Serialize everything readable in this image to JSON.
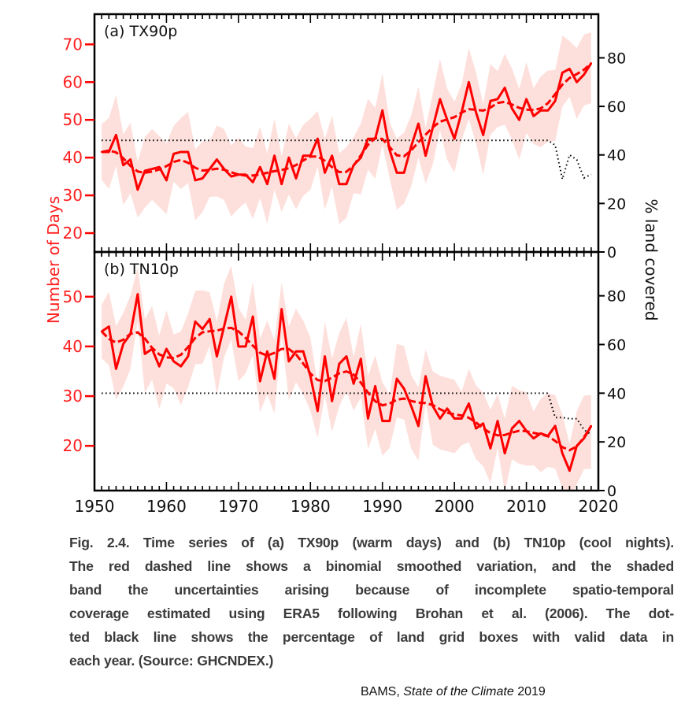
{
  "chart_data": [
    {
      "type": "line",
      "panel_label": "(a) TX90p",
      "x_start": 1951,
      "x_end": 2019,
      "xlim": [
        1950,
        2020
      ],
      "ylim": [
        15,
        78
      ],
      "yticks": [
        20,
        30,
        40,
        50,
        60,
        70
      ],
      "y2lim": [
        0,
        98
      ],
      "y2ticks": [
        0,
        20,
        40,
        60,
        80
      ],
      "values": [
        41.5,
        41.5,
        46,
        38,
        39.5,
        31.5,
        36.5,
        37,
        37.5,
        34,
        41,
        41.5,
        41.5,
        34,
        34.5,
        37,
        39.5,
        37,
        35,
        35.5,
        35.5,
        33.5,
        37.5,
        33,
        40.5,
        33,
        40,
        34.5,
        40.5,
        40.5,
        45,
        36,
        40.5,
        33,
        33,
        38,
        40,
        45,
        45,
        52.5,
        42,
        36,
        36,
        43,
        49,
        40.5,
        48,
        55.5,
        50,
        45,
        52,
        60,
        52,
        46,
        55,
        55.5,
        58.5,
        53,
        50,
        55.5,
        51,
        52.5,
        52.5,
        55,
        62.5,
        63.5,
        60,
        62,
        65
      ],
      "band_halfwidth": 9,
      "coverage_percent": [
        46,
        46,
        46,
        46,
        46,
        46,
        46,
        46,
        46,
        46,
        46,
        46,
        46,
        46,
        46,
        46,
        46,
        46,
        46,
        46,
        46,
        46,
        46,
        46,
        46,
        46,
        46,
        46,
        46,
        46,
        46,
        46,
        46,
        46,
        46,
        46,
        46,
        46,
        46,
        46,
        46,
        46,
        46,
        46,
        46,
        46,
        46,
        46,
        46,
        46,
        46,
        46,
        46,
        46,
        46,
        46,
        46,
        46,
        46,
        46,
        46,
        46,
        46,
        44,
        30,
        40,
        38,
        30.5,
        32
      ]
    },
    {
      "type": "line",
      "panel_label": "(b) TN10p",
      "x_start": 1951,
      "x_end": 2019,
      "xlim": [
        1950,
        2020
      ],
      "ylim": [
        11,
        59
      ],
      "yticks": [
        20,
        30,
        40,
        50
      ],
      "y2lim": [
        0,
        98
      ],
      "y2ticks": [
        0,
        20,
        40,
        60,
        80
      ],
      "values": [
        43,
        44,
        35.5,
        40.5,
        42.5,
        50.5,
        38.5,
        39.5,
        36,
        39.5,
        37,
        36,
        38,
        45,
        43.5,
        45.5,
        38,
        44,
        50,
        40,
        40,
        46,
        33,
        39,
        33.5,
        47.5,
        37,
        39,
        39,
        34,
        27,
        38,
        29,
        36.5,
        38,
        32.5,
        37.5,
        25.5,
        32,
        25,
        25,
        33.5,
        31.5,
        28,
        24,
        34,
        28,
        25.5,
        27.5,
        25.5,
        25.5,
        28.5,
        23.5,
        24.5,
        19.5,
        25,
        18.5,
        23.5,
        25,
        23,
        21.5,
        22.5,
        22,
        24,
        18.5,
        15,
        20,
        21.5,
        24
      ],
      "band_halfwidth": 7,
      "coverage_percent": [
        40,
        40,
        40,
        40,
        40,
        40,
        40,
        40,
        40,
        40,
        40,
        40,
        40,
        40,
        40,
        40,
        40,
        40,
        40,
        40,
        40,
        40,
        40,
        40,
        40,
        40,
        40,
        40,
        40,
        40,
        40,
        40,
        40,
        40,
        40,
        40,
        40,
        40,
        40,
        40,
        40,
        40,
        40,
        40,
        40,
        40,
        40,
        40,
        40,
        40,
        40,
        40,
        40,
        40,
        40,
        40,
        40,
        40,
        40,
        40,
        40,
        40,
        40,
        30,
        30,
        29.5,
        29.5,
        25,
        23
      ]
    }
  ],
  "axes": {
    "ylabel": "Number of Days",
    "y2label": "% land covered",
    "xticks": [
      "1950",
      "1960",
      "1970",
      "1980",
      "1990",
      "2000",
      "2010",
      "2020"
    ]
  },
  "colors": {
    "series": "#ff0000",
    "band": "#fde0dc",
    "coverage": "#000000",
    "axis_label": "#ff2020",
    "caption": "#3b3b3b"
  },
  "caption": {
    "lines": [
      "Fig. 2.4. Time series of (a) TX90p (warm days) and (b) TN10p (cool nights).",
      "The red dashed line shows a binomial smoothed variation, and the shaded",
      "band the uncertainties arising because of incomplete spatio-temporal",
      "coverage estimated using ERA5 following Brohan et al. (2006). The dot-",
      "ted black line shows the percentage of land grid boxes with valid data in",
      "each year. (Source: GHCNDEX.)"
    ]
  },
  "attribution": {
    "prefix": "BAMS, ",
    "title": "State of the Climate",
    "year": " 2019"
  }
}
